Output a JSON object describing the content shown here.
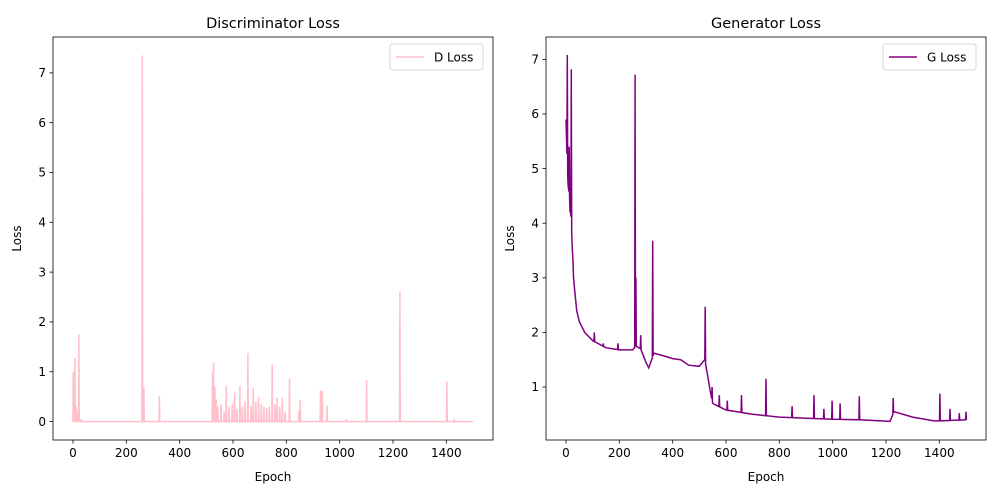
{
  "chart_data": [
    {
      "type": "line",
      "title": "Discriminator Loss",
      "xlabel": "Epoch",
      "ylabel": "Loss",
      "xlim": [
        -75,
        1575
      ],
      "ylim": [
        -0.37,
        7.72
      ],
      "xticks": [
        0,
        200,
        400,
        600,
        800,
        1000,
        1200,
        1400
      ],
      "yticks": [
        0,
        1,
        2,
        3,
        4,
        5,
        6,
        7
      ],
      "legend_position": "top-right",
      "grid": false,
      "series": [
        {
          "name": "D Loss",
          "color": "#ffc0cb",
          "baseline": 0.0,
          "spikes": [
            [
              1,
              1.0
            ],
            [
              4,
              0.8
            ],
            [
              7,
              1.28
            ],
            [
              12,
              0.3
            ],
            [
              16,
              0.2
            ],
            [
              22,
              1.75
            ],
            [
              30,
              0.05
            ],
            [
              260,
              7.35
            ],
            [
              266,
              0.7
            ],
            [
              324,
              0.52
            ],
            [
              523,
              1.0
            ],
            [
              527,
              1.18
            ],
            [
              532,
              0.7
            ],
            [
              537,
              0.45
            ],
            [
              543,
              0.3
            ],
            [
              555,
              0.35
            ],
            [
              567,
              0.2
            ],
            [
              575,
              0.72
            ],
            [
              585,
              0.3
            ],
            [
              597,
              0.35
            ],
            [
              606,
              0.58
            ],
            [
              615,
              0.25
            ],
            [
              626,
              0.72
            ],
            [
              635,
              0.3
            ],
            [
              645,
              0.4
            ],
            [
              656,
              1.37
            ],
            [
              668,
              0.32
            ],
            [
              676,
              0.67
            ],
            [
              686,
              0.4
            ],
            [
              696,
              0.5
            ],
            [
              706,
              0.35
            ],
            [
              716,
              0.3
            ],
            [
              726,
              0.28
            ],
            [
              736,
              0.3
            ],
            [
              747,
              1.14
            ],
            [
              757,
              0.35
            ],
            [
              765,
              0.48
            ],
            [
              775,
              0.3
            ],
            [
              785,
              0.48
            ],
            [
              795,
              0.2
            ],
            [
              812,
              0.86
            ],
            [
              847,
              0.22
            ],
            [
              852,
              0.43
            ],
            [
              928,
              0.62
            ],
            [
              935,
              0.62
            ],
            [
              953,
              0.32
            ],
            [
              1025,
              0.05
            ],
            [
              1101,
              0.83
            ],
            [
              1226,
              2.62
            ],
            [
              1402,
              0.81
            ],
            [
              1430,
              0.03
            ]
          ]
        }
      ]
    },
    {
      "type": "line",
      "title": "Generator Loss",
      "xlabel": "Epoch",
      "ylabel": "Loss",
      "xlim": [
        -75,
        1575
      ],
      "ylim": [
        0.03,
        7.41
      ],
      "xticks": [
        0,
        200,
        400,
        600,
        800,
        1000,
        1200,
        1400
      ],
      "yticks": [
        1,
        2,
        3,
        4,
        5,
        6,
        7
      ],
      "legend_position": "top-right",
      "grid": false,
      "series": [
        {
          "name": "G Loss",
          "color": "#800080",
          "trend": [
            [
              0,
              5.9
            ],
            [
              5,
              5.0
            ],
            [
              10,
              4.6
            ],
            [
              15,
              4.4
            ],
            [
              20,
              4.0
            ],
            [
              25,
              3.4
            ],
            [
              30,
              2.9
            ],
            [
              40,
              2.4
            ],
            [
              50,
              2.2
            ],
            [
              70,
              2.0
            ],
            [
              100,
              1.85
            ],
            [
              150,
              1.72
            ],
            [
              200,
              1.68
            ],
            [
              250,
              1.68
            ],
            [
              262,
              1.75
            ],
            [
              280,
              1.7
            ],
            [
              300,
              1.45
            ],
            [
              310,
              1.35
            ],
            [
              330,
              1.62
            ],
            [
              360,
              1.58
            ],
            [
              400,
              1.52
            ],
            [
              430,
              1.5
            ],
            [
              460,
              1.4
            ],
            [
              500,
              1.38
            ],
            [
              520,
              1.5
            ],
            [
              530,
              1.25
            ],
            [
              540,
              0.95
            ],
            [
              550,
              0.7
            ],
            [
              600,
              0.58
            ],
            [
              700,
              0.5
            ],
            [
              800,
              0.45
            ],
            [
              900,
              0.43
            ],
            [
              1000,
              0.41
            ],
            [
              1100,
              0.4
            ],
            [
              1215,
              0.37
            ],
            [
              1230,
              0.55
            ],
            [
              1300,
              0.45
            ],
            [
              1380,
              0.38
            ],
            [
              1400,
              0.38
            ],
            [
              1500,
              0.4
            ]
          ],
          "spikes": [
            [
              5,
              7.08
            ],
            [
              8,
              4.7
            ],
            [
              12,
              5.4
            ],
            [
              15,
              4.2
            ],
            [
              20,
              6.82
            ],
            [
              23,
              3.6
            ],
            [
              28,
              3.0
            ],
            [
              106,
              2.0
            ],
            [
              140,
              1.8
            ],
            [
              195,
              1.8
            ],
            [
              259,
              6.72
            ],
            [
              262,
              3.0
            ],
            [
              280,
              1.95
            ],
            [
              325,
              3.68
            ],
            [
              522,
              2.47
            ],
            [
              548,
              1.0
            ],
            [
              575,
              0.85
            ],
            [
              605,
              0.75
            ],
            [
              658,
              0.85
            ],
            [
              750,
              1.15
            ],
            [
              848,
              0.65
            ],
            [
              930,
              0.85
            ],
            [
              967,
              0.6
            ],
            [
              998,
              0.75
            ],
            [
              1028,
              0.7
            ],
            [
              1100,
              0.83
            ],
            [
              1227,
              0.8
            ],
            [
              1402,
              0.88
            ],
            [
              1440,
              0.6
            ],
            [
              1475,
              0.52
            ],
            [
              1500,
              0.55
            ]
          ]
        }
      ]
    }
  ]
}
